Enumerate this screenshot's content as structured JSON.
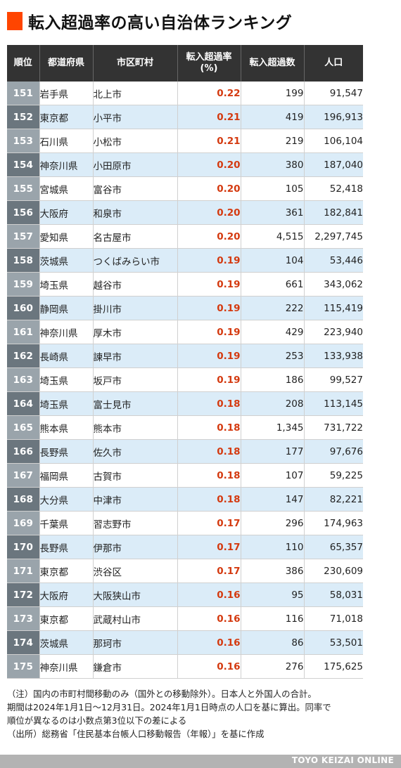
{
  "title": "転入超過率の高い自治体ランキング",
  "table": {
    "headers": {
      "rank": "順位",
      "pref": "都道府県",
      "city": "市区町村",
      "rate_line1": "転入超過率",
      "rate_line2": "(%)",
      "excess": "転入超過数",
      "population": "人口"
    },
    "rows": [
      {
        "rank": "151",
        "pref": "岩手県",
        "city": "北上市",
        "rate": "0.22",
        "excess": "199",
        "population": "91,547"
      },
      {
        "rank": "152",
        "pref": "東京都",
        "city": "小平市",
        "rate": "0.21",
        "excess": "419",
        "population": "196,913"
      },
      {
        "rank": "153",
        "pref": "石川県",
        "city": "小松市",
        "rate": "0.21",
        "excess": "219",
        "population": "106,104"
      },
      {
        "rank": "154",
        "pref": "神奈川県",
        "city": "小田原市",
        "rate": "0.20",
        "excess": "380",
        "population": "187,040"
      },
      {
        "rank": "155",
        "pref": "宮城県",
        "city": "富谷市",
        "rate": "0.20",
        "excess": "105",
        "population": "52,418"
      },
      {
        "rank": "156",
        "pref": "大阪府",
        "city": "和泉市",
        "rate": "0.20",
        "excess": "361",
        "population": "182,841"
      },
      {
        "rank": "157",
        "pref": "愛知県",
        "city": "名古屋市",
        "rate": "0.20",
        "excess": "4,515",
        "population": "2,297,745"
      },
      {
        "rank": "158",
        "pref": "茨城県",
        "city": "つくばみらい市",
        "rate": "0.19",
        "excess": "104",
        "population": "53,446"
      },
      {
        "rank": "159",
        "pref": "埼玉県",
        "city": "越谷市",
        "rate": "0.19",
        "excess": "661",
        "population": "343,062"
      },
      {
        "rank": "160",
        "pref": "静岡県",
        "city": "掛川市",
        "rate": "0.19",
        "excess": "222",
        "population": "115,419"
      },
      {
        "rank": "161",
        "pref": "神奈川県",
        "city": "厚木市",
        "rate": "0.19",
        "excess": "429",
        "population": "223,940"
      },
      {
        "rank": "162",
        "pref": "長崎県",
        "city": "諫早市",
        "rate": "0.19",
        "excess": "253",
        "population": "133,938"
      },
      {
        "rank": "163",
        "pref": "埼玉県",
        "city": "坂戸市",
        "rate": "0.19",
        "excess": "186",
        "population": "99,527"
      },
      {
        "rank": "164",
        "pref": "埼玉県",
        "city": "富士見市",
        "rate": "0.18",
        "excess": "208",
        "population": "113,145"
      },
      {
        "rank": "165",
        "pref": "熊本県",
        "city": "熊本市",
        "rate": "0.18",
        "excess": "1,345",
        "population": "731,722"
      },
      {
        "rank": "166",
        "pref": "長野県",
        "city": "佐久市",
        "rate": "0.18",
        "excess": "177",
        "population": "97,676"
      },
      {
        "rank": "167",
        "pref": "福岡県",
        "city": "古賀市",
        "rate": "0.18",
        "excess": "107",
        "population": "59,225"
      },
      {
        "rank": "168",
        "pref": "大分県",
        "city": "中津市",
        "rate": "0.18",
        "excess": "147",
        "population": "82,221"
      },
      {
        "rank": "169",
        "pref": "千葉県",
        "city": "習志野市",
        "rate": "0.17",
        "excess": "296",
        "population": "174,963"
      },
      {
        "rank": "170",
        "pref": "長野県",
        "city": "伊那市",
        "rate": "0.17",
        "excess": "110",
        "population": "65,357"
      },
      {
        "rank": "171",
        "pref": "東京都",
        "city": "渋谷区",
        "rate": "0.17",
        "excess": "386",
        "population": "230,609"
      },
      {
        "rank": "172",
        "pref": "大阪府",
        "city": "大阪狭山市",
        "rate": "0.16",
        "excess": "95",
        "population": "58,031"
      },
      {
        "rank": "173",
        "pref": "東京都",
        "city": "武蔵村山市",
        "rate": "0.16",
        "excess": "116",
        "population": "71,018"
      },
      {
        "rank": "174",
        "pref": "茨城県",
        "city": "那珂市",
        "rate": "0.16",
        "excess": "86",
        "population": "53,501"
      },
      {
        "rank": "175",
        "pref": "神奈川県",
        "city": "鎌倉市",
        "rate": "0.16",
        "excess": "276",
        "population": "175,625"
      }
    ]
  },
  "notes": [
    "（注）国内の市町村間移動のみ（国外との移動除外）。日本人と外国人の合計。",
    "期間は2024年1月1日～12月31日。2024年1月1日時点の人口を基に算出。同率で",
    "順位が異なるのは小数点第3位以下の差による",
    "（出所）総務省「住民基本台帳人口移動報告（年報）」を基に作成"
  ],
  "footer": "TOYO KEIZAI ONLINE",
  "colors": {
    "accent": "#ff4500",
    "header_bg": "#333333",
    "rate_text": "#d43a10",
    "row_alt_bg": "#dbecf8",
    "rank_dark": "#6b767e",
    "rank_light": "#9aa4ab"
  }
}
